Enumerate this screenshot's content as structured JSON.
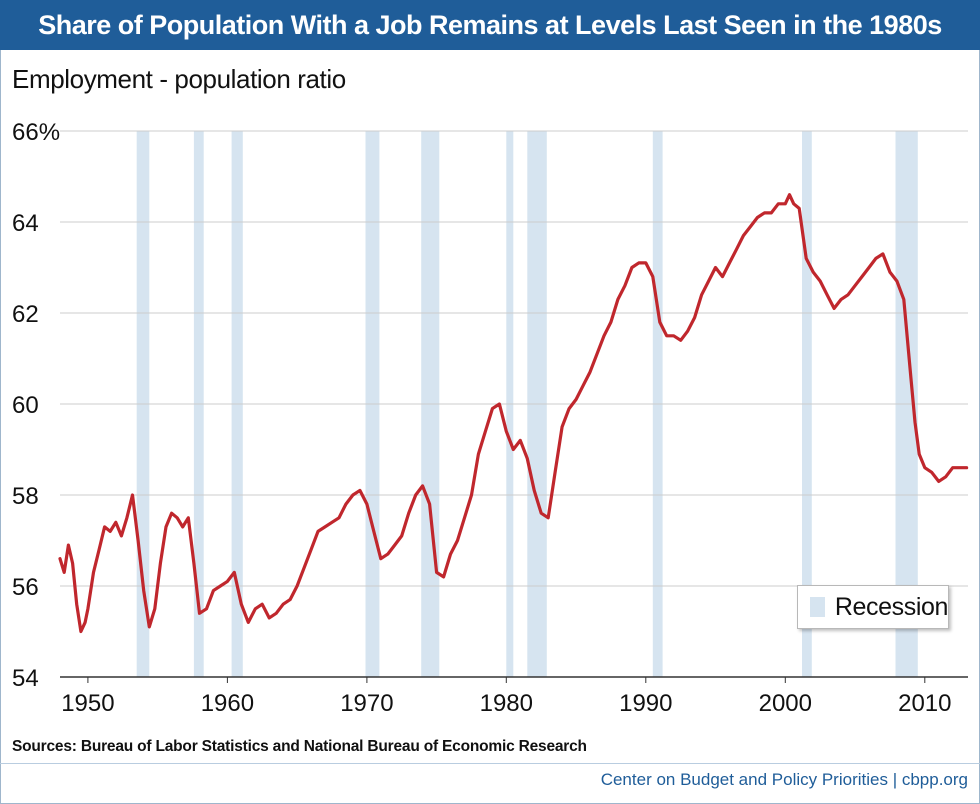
{
  "chart_data": {
    "type": "line",
    "title": "Share of Population With a Job Remains at Levels Last Seen in the 1980s",
    "ylabel": "Employment - population ratio",
    "xlabel": "",
    "xlim": [
      1948,
      2013.1
    ],
    "ylim": [
      54,
      66
    ],
    "y_ticks": [
      54,
      56,
      58,
      60,
      62,
      64,
      66
    ],
    "y_tick_labels": [
      "54",
      "56",
      "58",
      "60",
      "62",
      "64",
      "66%"
    ],
    "x_ticks": [
      1950,
      1960,
      1970,
      1980,
      1990,
      2000,
      2010
    ],
    "x_tick_labels": [
      "1950",
      "1960",
      "1970",
      "1980",
      "1990",
      "2000",
      "2010"
    ],
    "grid": true,
    "legend": {
      "label": "Recession",
      "placement": "bottom-right"
    },
    "recession_bands": [
      [
        1953.5,
        1954.4
      ],
      [
        1957.6,
        1958.3
      ],
      [
        1960.3,
        1961.1
      ],
      [
        1969.9,
        1970.9
      ],
      [
        1973.9,
        1975.2
      ],
      [
        1980.0,
        1980.5
      ],
      [
        1981.5,
        1982.9
      ],
      [
        1990.5,
        1991.2
      ],
      [
        2001.2,
        2001.9
      ],
      [
        2007.9,
        2009.5
      ]
    ],
    "series": [
      {
        "name": "Employment-population ratio",
        "color": "#c0272d",
        "x": [
          1948.0,
          1948.3,
          1948.6,
          1948.9,
          1949.2,
          1949.5,
          1949.8,
          1950.0,
          1950.4,
          1950.8,
          1951.2,
          1951.6,
          1952.0,
          1952.4,
          1952.8,
          1953.2,
          1953.6,
          1954.0,
          1954.4,
          1954.8,
          1955.2,
          1955.6,
          1956.0,
          1956.4,
          1956.8,
          1957.2,
          1957.6,
          1958.0,
          1958.5,
          1959.0,
          1959.5,
          1960.0,
          1960.5,
          1961.0,
          1961.5,
          1962.0,
          1962.5,
          1963.0,
          1963.5,
          1964.0,
          1964.5,
          1965.0,
          1965.5,
          1966.0,
          1966.5,
          1967.0,
          1967.5,
          1968.0,
          1968.5,
          1969.0,
          1969.5,
          1970.0,
          1970.5,
          1971.0,
          1971.5,
          1972.0,
          1972.5,
          1973.0,
          1973.5,
          1974.0,
          1974.5,
          1975.0,
          1975.5,
          1976.0,
          1976.5,
          1977.0,
          1977.5,
          1978.0,
          1978.5,
          1979.0,
          1979.5,
          1980.0,
          1980.5,
          1981.0,
          1981.5,
          1982.0,
          1982.5,
          1983.0,
          1983.5,
          1984.0,
          1984.5,
          1985.0,
          1985.5,
          1986.0,
          1986.5,
          1987.0,
          1987.5,
          1988.0,
          1988.5,
          1989.0,
          1989.5,
          1990.0,
          1990.5,
          1991.0,
          1991.5,
          1992.0,
          1992.5,
          1993.0,
          1993.5,
          1994.0,
          1994.5,
          1995.0,
          1995.5,
          1996.0,
          1996.5,
          1997.0,
          1997.5,
          1998.0,
          1998.5,
          1999.0,
          1999.5,
          2000.0,
          2000.3,
          2000.6,
          2001.0,
          2001.5,
          2002.0,
          2002.5,
          2003.0,
          2003.5,
          2004.0,
          2004.5,
          2005.0,
          2005.5,
          2006.0,
          2006.5,
          2007.0,
          2007.5,
          2008.0,
          2008.5,
          2009.0,
          2009.3,
          2009.6,
          2010.0,
          2010.5,
          2011.0,
          2011.5,
          2012.0,
          2012.5,
          2013.0
        ],
        "values": [
          56.6,
          56.3,
          56.9,
          56.5,
          55.6,
          55.0,
          55.2,
          55.5,
          56.3,
          56.8,
          57.3,
          57.2,
          57.4,
          57.1,
          57.5,
          58.0,
          57.0,
          55.9,
          55.1,
          55.5,
          56.5,
          57.3,
          57.6,
          57.5,
          57.3,
          57.5,
          56.5,
          55.4,
          55.5,
          55.9,
          56.0,
          56.1,
          56.3,
          55.6,
          55.2,
          55.5,
          55.6,
          55.3,
          55.4,
          55.6,
          55.7,
          56.0,
          56.4,
          56.8,
          57.2,
          57.3,
          57.4,
          57.5,
          57.8,
          58.0,
          58.1,
          57.8,
          57.2,
          56.6,
          56.7,
          56.9,
          57.1,
          57.6,
          58.0,
          58.2,
          57.8,
          56.3,
          56.2,
          56.7,
          57.0,
          57.5,
          58.0,
          58.9,
          59.4,
          59.9,
          60.0,
          59.4,
          59.0,
          59.2,
          58.8,
          58.1,
          57.6,
          57.5,
          58.5,
          59.5,
          59.9,
          60.1,
          60.4,
          60.7,
          61.1,
          61.5,
          61.8,
          62.3,
          62.6,
          63.0,
          63.1,
          63.1,
          62.8,
          61.8,
          61.5,
          61.5,
          61.4,
          61.6,
          61.9,
          62.4,
          62.7,
          63.0,
          62.8,
          63.1,
          63.4,
          63.7,
          63.9,
          64.1,
          64.2,
          64.2,
          64.4,
          64.4,
          64.6,
          64.4,
          64.3,
          63.2,
          62.9,
          62.7,
          62.4,
          62.1,
          62.3,
          62.4,
          62.6,
          62.8,
          63.0,
          63.2,
          63.3,
          62.9,
          62.7,
          62.3,
          60.6,
          59.6,
          58.9,
          58.6,
          58.5,
          58.3,
          58.4,
          58.6,
          58.6,
          58.6
        ]
      }
    ]
  },
  "footer": {
    "sources": "Sources: Bureau of Labor Statistics and National Bureau of Economic Research",
    "credit": "Center on Budget and Policy Priorities | cbpp.org"
  },
  "colors": {
    "title_bar": "#1f5d99",
    "recession_band": "#d6e4f0",
    "line": "#c0272d",
    "gridline": "#cccccc"
  }
}
